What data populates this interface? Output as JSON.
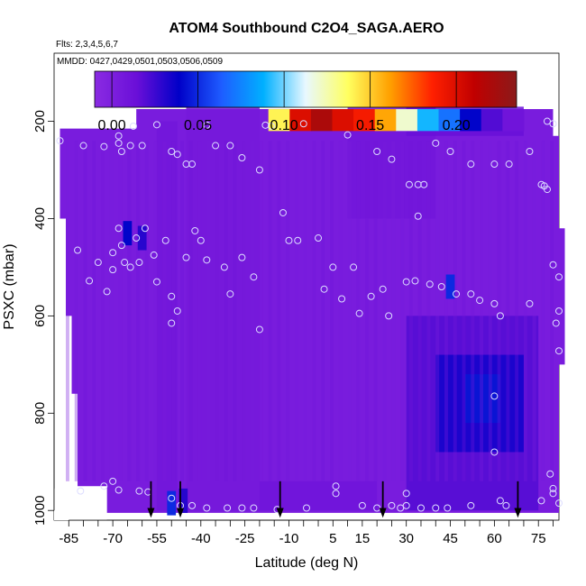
{
  "chart_data": {
    "type": "heatmap",
    "title": "ATOM4 Southbound C2O4_SAGA.AERO",
    "flights_label": "Flts: 2,3,4,5,6,7",
    "dates_label": "MMDD: 0427,0429,0501,0503,0506,0509",
    "xlabel": "Latitude (deg N)",
    "ylabel": "PSXC (mbar)",
    "xlim": [
      -90,
      82
    ],
    "ylim": [
      1020,
      60
    ],
    "x_ticks": [
      {
        "value": -85,
        "label": "-85"
      },
      {
        "value": -70,
        "label": "-70"
      },
      {
        "value": -55,
        "label": "-55"
      },
      {
        "value": -40,
        "label": "-40"
      },
      {
        "value": -25,
        "label": "-25"
      },
      {
        "value": -10,
        "label": "-10"
      },
      {
        "value": 5,
        "label": "5"
      },
      {
        "value": 15,
        "label": "15"
      },
      {
        "value": 30,
        "label": "30"
      },
      {
        "value": 45,
        "label": "45"
      },
      {
        "value": 60,
        "label": "60"
      },
      {
        "value": 75,
        "label": "75"
      }
    ],
    "y_ticks": [
      {
        "value": 200,
        "label": "200"
      },
      {
        "value": 400,
        "label": "400"
      },
      {
        "value": 600,
        "label": "600"
      },
      {
        "value": 800,
        "label": "800"
      },
      {
        "value": 1000,
        "label": "1000"
      }
    ],
    "colorbar": {
      "min": -0.01,
      "max": 0.235,
      "ticks": [
        {
          "value": 0.0,
          "label": "0.00"
        },
        {
          "value": 0.05,
          "label": "0.05"
        },
        {
          "value": 0.1,
          "label": "0.10"
        },
        {
          "value": 0.15,
          "label": "0.15"
        },
        {
          "value": 0.2,
          "label": "0.20"
        }
      ],
      "colors": [
        "#8a2be2",
        "#6a0fd8",
        "#0000c8",
        "#1e5cff",
        "#00b0ff",
        "#e8f8ff",
        "#ffff60",
        "#ffa000",
        "#ff2000",
        "#c00000",
        "#8b1a1a"
      ]
    },
    "background_value": 0.003,
    "fields": [
      {
        "lat": [
          -55,
          -48
        ],
        "p": [
          200,
          1000
        ],
        "value": 0.008
      },
      {
        "lat": [
          -45,
          -20
        ],
        "p": [
          170,
          1000
        ],
        "value": 0.006
      },
      {
        "lat": [
          10,
          40
        ],
        "p": [
          170,
          400
        ],
        "value": 0.008
      },
      {
        "lat": [
          30,
          70
        ],
        "p": [
          170,
          230
        ],
        "value": 0.015
      },
      {
        "lat": [
          30,
          75
        ],
        "p": [
          600,
          1000
        ],
        "value": 0.02
      },
      {
        "lat": [
          40,
          70
        ],
        "p": [
          680,
          880
        ],
        "value": 0.035
      },
      {
        "lat": [
          50,
          62
        ],
        "p": [
          720,
          820
        ],
        "value": 0.045
      },
      {
        "lat": [
          -20,
          20
        ],
        "p": [
          940,
          1000
        ],
        "value": 0.01
      }
    ],
    "hotspots": [
      {
        "lat": -50,
        "p": 985,
        "value": 0.05
      },
      {
        "lat": -46,
        "p": 980,
        "value": 0.03
      },
      {
        "lat": -65,
        "p": 430,
        "value": 0.04
      },
      {
        "lat": -60,
        "p": 440,
        "value": 0.03
      },
      {
        "lat": 45,
        "p": 540,
        "value": 0.05
      }
    ],
    "transect": {
      "p": [
        175,
        220
      ],
      "lat": [
        -17,
        70
      ],
      "values": [
        0.14,
        0.2,
        0.22,
        0.2,
        0.19,
        0.16,
        0.12,
        0.09,
        0.07,
        0.04,
        0.02,
        0.01
      ]
    },
    "samples": [
      {
        "lat": -88,
        "p": 240
      },
      {
        "lat": -80,
        "p": 250
      },
      {
        "lat": -73,
        "p": 252
      },
      {
        "lat": -68,
        "p": 230
      },
      {
        "lat": -68,
        "p": 245
      },
      {
        "lat": -67,
        "p": 262
      },
      {
        "lat": -64,
        "p": 250
      },
      {
        "lat": -63,
        "p": 210
      },
      {
        "lat": -60,
        "p": 250
      },
      {
        "lat": -55,
        "p": 207
      },
      {
        "lat": -50,
        "p": 262
      },
      {
        "lat": -48,
        "p": 268
      },
      {
        "lat": -45,
        "p": 288
      },
      {
        "lat": -43,
        "p": 288
      },
      {
        "lat": -38,
        "p": 208
      },
      {
        "lat": -35,
        "p": 250
      },
      {
        "lat": -30,
        "p": 250
      },
      {
        "lat": -26,
        "p": 275
      },
      {
        "lat": -20,
        "p": 300
      },
      {
        "lat": -12,
        "p": 388
      },
      {
        "lat": -5,
        "p": 205
      },
      {
        "lat": 10,
        "p": 228
      },
      {
        "lat": 20,
        "p": 262
      },
      {
        "lat": 25,
        "p": 278
      },
      {
        "lat": 31,
        "p": 330
      },
      {
        "lat": 34,
        "p": 330
      },
      {
        "lat": 36,
        "p": 330
      },
      {
        "lat": 34,
        "p": 395
      },
      {
        "lat": 40,
        "p": 245
      },
      {
        "lat": 45,
        "p": 262
      },
      {
        "lat": 52,
        "p": 288
      },
      {
        "lat": 60,
        "p": 288
      },
      {
        "lat": 65,
        "p": 288
      },
      {
        "lat": 72,
        "p": 262
      },
      {
        "lat": 76,
        "p": 330
      },
      {
        "lat": 77,
        "p": 333
      },
      {
        "lat": 78,
        "p": 340
      },
      {
        "lat": 80,
        "p": 205
      },
      {
        "lat": -82,
        "p": 465
      },
      {
        "lat": -78,
        "p": 528
      },
      {
        "lat": -75,
        "p": 490
      },
      {
        "lat": -72,
        "p": 550
      },
      {
        "lat": -70,
        "p": 470
      },
      {
        "lat": -70,
        "p": 505
      },
      {
        "lat": -68,
        "p": 420
      },
      {
        "lat": -67,
        "p": 455
      },
      {
        "lat": -66,
        "p": 490
      },
      {
        "lat": -64,
        "p": 500
      },
      {
        "lat": -62,
        "p": 440
      },
      {
        "lat": -61,
        "p": 490
      },
      {
        "lat": -59,
        "p": 420
      },
      {
        "lat": -56,
        "p": 475
      },
      {
        "lat": -55,
        "p": 530
      },
      {
        "lat": -52,
        "p": 445
      },
      {
        "lat": -50,
        "p": 560
      },
      {
        "lat": -50,
        "p": 615
      },
      {
        "lat": -48,
        "p": 590
      },
      {
        "lat": -45,
        "p": 480
      },
      {
        "lat": -42,
        "p": 425
      },
      {
        "lat": -40,
        "p": 445
      },
      {
        "lat": -38,
        "p": 485
      },
      {
        "lat": -32,
        "p": 500
      },
      {
        "lat": -30,
        "p": 555
      },
      {
        "lat": -26,
        "p": 480
      },
      {
        "lat": -22,
        "p": 520
      },
      {
        "lat": -20,
        "p": 628
      },
      {
        "lat": -10,
        "p": 445
      },
      {
        "lat": -7,
        "p": 445
      },
      {
        "lat": 0,
        "p": 440
      },
      {
        "lat": 5,
        "p": 500
      },
      {
        "lat": 2,
        "p": 545
      },
      {
        "lat": 8,
        "p": 565
      },
      {
        "lat": 12,
        "p": 500
      },
      {
        "lat": 14,
        "p": 595
      },
      {
        "lat": 18,
        "p": 560
      },
      {
        "lat": 22,
        "p": 545
      },
      {
        "lat": 24,
        "p": 600
      },
      {
        "lat": 30,
        "p": 530
      },
      {
        "lat": 33,
        "p": 528
      },
      {
        "lat": 38,
        "p": 535
      },
      {
        "lat": 42,
        "p": 540
      },
      {
        "lat": 47,
        "p": 555
      },
      {
        "lat": 52,
        "p": 555
      },
      {
        "lat": 55,
        "p": 568
      },
      {
        "lat": 60,
        "p": 575
      },
      {
        "lat": 62,
        "p": 600
      },
      {
        "lat": 72,
        "p": 575
      },
      {
        "lat": 82,
        "p": 590
      },
      {
        "lat": 81,
        "p": 615
      },
      {
        "lat": 82,
        "p": 672
      },
      {
        "lat": 80,
        "p": 495
      },
      {
        "lat": 82,
        "p": 520
      },
      {
        "lat": 60,
        "p": 765
      },
      {
        "lat": 60,
        "p": 880
      },
      {
        "lat": -81,
        "p": 960
      },
      {
        "lat": -73,
        "p": 950
      },
      {
        "lat": -70,
        "p": 940
      },
      {
        "lat": -68,
        "p": 958
      },
      {
        "lat": -61,
        "p": 960
      },
      {
        "lat": -58,
        "p": 962
      },
      {
        "lat": -50,
        "p": 975
      },
      {
        "lat": -47,
        "p": 990
      },
      {
        "lat": -43,
        "p": 990
      },
      {
        "lat": -38,
        "p": 995
      },
      {
        "lat": -31,
        "p": 995
      },
      {
        "lat": -26,
        "p": 995
      },
      {
        "lat": -22,
        "p": 995
      },
      {
        "lat": -14,
        "p": 998
      },
      {
        "lat": -4,
        "p": 995
      },
      {
        "lat": 6,
        "p": 950
      },
      {
        "lat": 6,
        "p": 965
      },
      {
        "lat": 15,
        "p": 990
      },
      {
        "lat": 20,
        "p": 995
      },
      {
        "lat": 25,
        "p": 990
      },
      {
        "lat": 28,
        "p": 995
      },
      {
        "lat": 30,
        "p": 965
      },
      {
        "lat": 30,
        "p": 990
      },
      {
        "lat": 35,
        "p": 995
      },
      {
        "lat": 40,
        "p": 995
      },
      {
        "lat": 44,
        "p": 995
      },
      {
        "lat": 52,
        "p": 990
      },
      {
        "lat": 62,
        "p": 980
      },
      {
        "lat": 64,
        "p": 990
      },
      {
        "lat": 80,
        "p": 955
      },
      {
        "lat": 80,
        "p": 965
      },
      {
        "lat": 76,
        "p": 980
      },
      {
        "lat": 82,
        "p": 985
      },
      {
        "lat": 79,
        "p": 925
      },
      {
        "lat": 78,
        "p": 200
      },
      {
        "lat": -16,
        "p": 210
      },
      {
        "lat": -18,
        "p": 208
      }
    ],
    "flight_markers": [
      -57,
      -47,
      -13,
      22,
      68
    ]
  }
}
